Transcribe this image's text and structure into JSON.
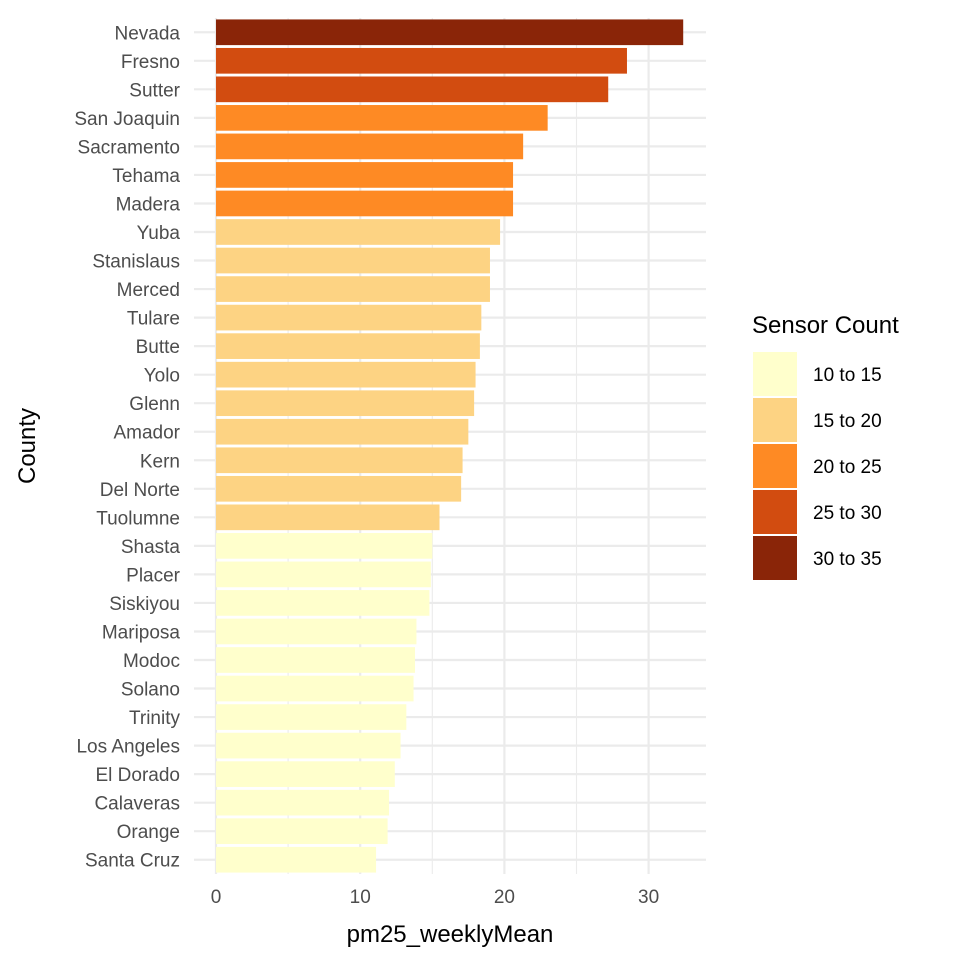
{
  "chart_data": {
    "type": "bar",
    "orientation": "horizontal",
    "xlabel": "pm25_weeklyMean",
    "ylabel": "County",
    "xlim": [
      0,
      34
    ],
    "x_ticks": [
      0,
      10,
      20,
      30
    ],
    "grid": true,
    "legend_position": "right",
    "legend": {
      "title": "Sensor Count",
      "items": [
        {
          "label": "10 to 15",
          "color": "#FFFFCC"
        },
        {
          "label": "15 to 20",
          "color": "#FDD383"
        },
        {
          "label": "20 to 25",
          "color": "#FE8A24"
        },
        {
          "label": "25 to 30",
          "color": "#D24C10"
        },
        {
          "label": "30 to 35",
          "color": "#8A2508"
        }
      ]
    },
    "bars": [
      {
        "category": "Nevada",
        "value": 32.4,
        "group": "30 to 35"
      },
      {
        "category": "Fresno",
        "value": 28.5,
        "group": "25 to 30"
      },
      {
        "category": "Sutter",
        "value": 27.2,
        "group": "25 to 30"
      },
      {
        "category": "San Joaquin",
        "value": 23.0,
        "group": "20 to 25"
      },
      {
        "category": "Sacramento",
        "value": 21.3,
        "group": "20 to 25"
      },
      {
        "category": "Tehama",
        "value": 20.6,
        "group": "20 to 25"
      },
      {
        "category": "Madera",
        "value": 20.6,
        "group": "20 to 25"
      },
      {
        "category": "Yuba",
        "value": 19.7,
        "group": "15 to 20"
      },
      {
        "category": "Stanislaus",
        "value": 19.0,
        "group": "15 to 20"
      },
      {
        "category": "Merced",
        "value": 19.0,
        "group": "15 to 20"
      },
      {
        "category": "Tulare",
        "value": 18.4,
        "group": "15 to 20"
      },
      {
        "category": "Butte",
        "value": 18.3,
        "group": "15 to 20"
      },
      {
        "category": "Yolo",
        "value": 18.0,
        "group": "15 to 20"
      },
      {
        "category": "Glenn",
        "value": 17.9,
        "group": "15 to 20"
      },
      {
        "category": "Amador",
        "value": 17.5,
        "group": "15 to 20"
      },
      {
        "category": "Kern",
        "value": 17.1,
        "group": "15 to 20"
      },
      {
        "category": "Del Norte",
        "value": 17.0,
        "group": "15 to 20"
      },
      {
        "category": "Tuolumne",
        "value": 15.5,
        "group": "15 to 20"
      },
      {
        "category": "Shasta",
        "value": 15.0,
        "group": "10 to 15"
      },
      {
        "category": "Placer",
        "value": 14.9,
        "group": "10 to 15"
      },
      {
        "category": "Siskiyou",
        "value": 14.8,
        "group": "10 to 15"
      },
      {
        "category": "Mariposa",
        "value": 13.9,
        "group": "10 to 15"
      },
      {
        "category": "Modoc",
        "value": 13.8,
        "group": "10 to 15"
      },
      {
        "category": "Solano",
        "value": 13.7,
        "group": "10 to 15"
      },
      {
        "category": "Trinity",
        "value": 13.2,
        "group": "10 to 15"
      },
      {
        "category": "Los Angeles",
        "value": 12.8,
        "group": "10 to 15"
      },
      {
        "category": "El Dorado",
        "value": 12.4,
        "group": "10 to 15"
      },
      {
        "category": "Calaveras",
        "value": 12.0,
        "group": "10 to 15"
      },
      {
        "category": "Orange",
        "value": 11.9,
        "group": "10 to 15"
      },
      {
        "category": "Santa Cruz",
        "value": 11.1,
        "group": "10 to 15"
      }
    ]
  }
}
